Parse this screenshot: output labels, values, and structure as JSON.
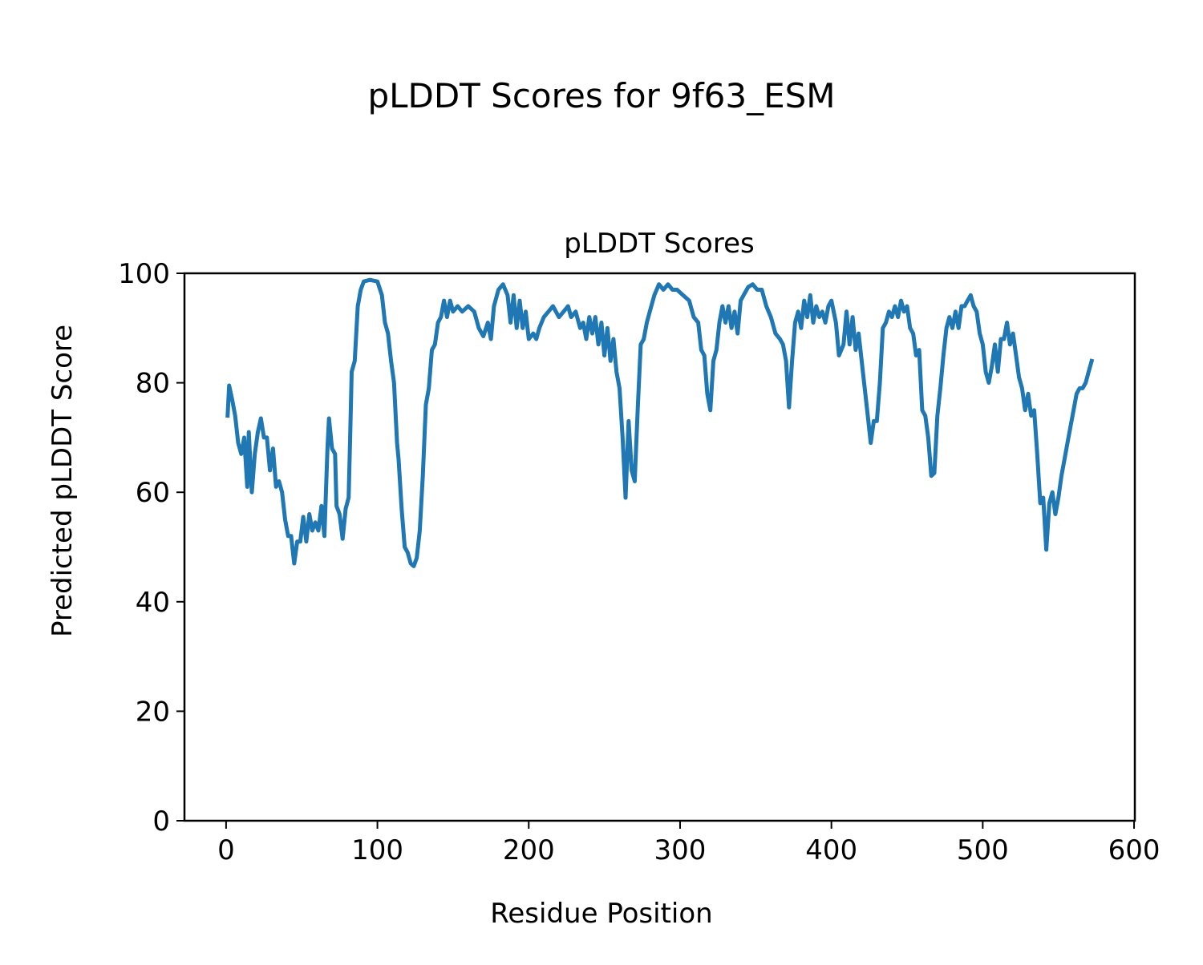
{
  "figure_title": "pLDDT Scores for 9f63_ESM",
  "chart_data": {
    "type": "line",
    "title": "pLDDT Scores",
    "xlabel": "Residue Position",
    "ylabel": "Predicted pLDDT Score",
    "xlim": [
      -27.5,
      600.5
    ],
    "ylim": [
      0,
      100
    ],
    "xticks": [
      0,
      100,
      200,
      300,
      400,
      500,
      600
    ],
    "yticks": [
      0,
      20,
      40,
      60,
      80,
      100
    ],
    "grid": false,
    "color": "#1f77b4",
    "series": [
      {
        "name": "pLDDT",
        "x": [
          1,
          2,
          4,
          6,
          8,
          10,
          12,
          14,
          15,
          17,
          19,
          21,
          23,
          25,
          27,
          29,
          31,
          33,
          35,
          37,
          39,
          41,
          43,
          45,
          47,
          49,
          51,
          53,
          55,
          57,
          59,
          61,
          63,
          65,
          67,
          68,
          70,
          72,
          73,
          75,
          77,
          79,
          81,
          82,
          83,
          85,
          87,
          89,
          91,
          95,
          100,
          103,
          105,
          107,
          109,
          111,
          113,
          114,
          116,
          118,
          120,
          122,
          124,
          126,
          128,
          130,
          132,
          134,
          136,
          138,
          140,
          142,
          144,
          146,
          148,
          150,
          153,
          156,
          160,
          164,
          167,
          170,
          173,
          175,
          177,
          180,
          183,
          186,
          188,
          190,
          192,
          194,
          196,
          198,
          200,
          203,
          205,
          207,
          210,
          213,
          216,
          218,
          220,
          223,
          226,
          228,
          231,
          234,
          236,
          238,
          240,
          242,
          244,
          246,
          248,
          250,
          252,
          254,
          256,
          258,
          260,
          262,
          264,
          266,
          268,
          270,
          272,
          274,
          276,
          278,
          280,
          283,
          286,
          289,
          292,
          295,
          298,
          302,
          306,
          309,
          312,
          314,
          316,
          318,
          320,
          322,
          324,
          326,
          328,
          330,
          332,
          334,
          336,
          338,
          340,
          342,
          345,
          348,
          351,
          354,
          357,
          360,
          363,
          366,
          368,
          370,
          372,
          374,
          376,
          378,
          380,
          382,
          384,
          386,
          388,
          390,
          392,
          394,
          396,
          398,
          400,
          403,
          405,
          408,
          410,
          412,
          414,
          416,
          418,
          420,
          422,
          424,
          426,
          428,
          430,
          432,
          434,
          436,
          438,
          440,
          442,
          444,
          446,
          448,
          450,
          452,
          454,
          456,
          458,
          460,
          462,
          464,
          466,
          468,
          470,
          472,
          474,
          476,
          478,
          480,
          482,
          484,
          486,
          488,
          490,
          492,
          494,
          496,
          498,
          500,
          502,
          504,
          506,
          508,
          510,
          512,
          514,
          516,
          518,
          520,
          522,
          524,
          526,
          528,
          530,
          532,
          534,
          536,
          538,
          540,
          542,
          544,
          546,
          548,
          550,
          552,
          554,
          556,
          558,
          560,
          562,
          564,
          566,
          568,
          570,
          572
        ],
        "y": [
          74,
          79.5,
          77,
          74,
          69,
          67,
          70,
          61,
          71,
          60,
          67,
          71,
          73.5,
          70,
          70,
          64,
          68,
          61,
          62,
          60,
          55,
          52,
          52,
          47,
          51,
          51,
          55.5,
          51,
          56,
          53,
          54.5,
          53,
          57.5,
          52,
          68,
          73.5,
          68,
          67,
          57.5,
          56,
          51.5,
          57,
          59,
          70,
          82,
          84,
          94,
          97,
          98.5,
          98.8,
          98.5,
          96,
          91,
          89,
          84,
          80,
          69,
          66,
          57,
          50,
          49,
          47,
          46.5,
          48,
          53,
          63,
          76,
          79,
          86,
          87,
          91,
          92,
          95,
          92,
          95,
          93,
          94,
          93,
          94,
          93,
          90,
          88.5,
          91,
          88,
          94,
          97,
          98,
          96,
          91,
          96,
          90,
          95,
          90,
          93,
          88,
          89,
          88,
          90,
          92,
          93,
          94,
          93,
          92,
          93,
          94,
          92,
          93,
          90,
          91,
          88,
          92,
          89,
          92,
          87,
          91,
          85,
          90,
          84,
          88,
          82,
          79,
          70,
          59,
          73,
          64,
          62,
          75,
          87,
          88,
          91,
          93,
          96,
          98,
          97,
          98,
          97,
          97,
          96,
          95,
          92,
          91,
          86,
          85,
          78,
          75,
          84,
          86,
          91,
          94,
          91,
          94,
          90,
          93,
          89,
          95,
          96,
          97.5,
          98,
          97,
          97,
          94,
          92,
          89,
          88,
          87,
          84,
          75.5,
          84,
          91,
          93,
          90,
          95,
          92,
          96,
          91,
          94,
          92,
          93,
          91,
          94,
          95,
          91,
          85,
          87,
          93,
          87,
          92,
          86,
          89,
          84,
          79,
          74,
          69,
          73,
          73,
          80,
          90,
          91,
          93,
          92,
          94,
          92,
          95,
          93,
          94,
          90,
          89,
          85,
          86,
          75,
          74,
          70,
          63,
          63.5,
          74,
          79,
          85,
          90,
          92,
          90,
          93,
          90,
          94,
          94,
          95,
          96,
          94,
          93,
          89,
          87,
          82,
          80,
          83,
          87,
          82,
          88,
          88,
          91,
          87,
          89,
          85,
          81,
          79,
          75,
          78,
          74,
          75,
          67,
          58,
          59,
          49.5,
          58,
          60,
          56,
          59,
          63,
          66,
          69,
          72,
          75,
          78,
          79,
          79,
          80,
          82,
          84
        ]
      }
    ]
  }
}
